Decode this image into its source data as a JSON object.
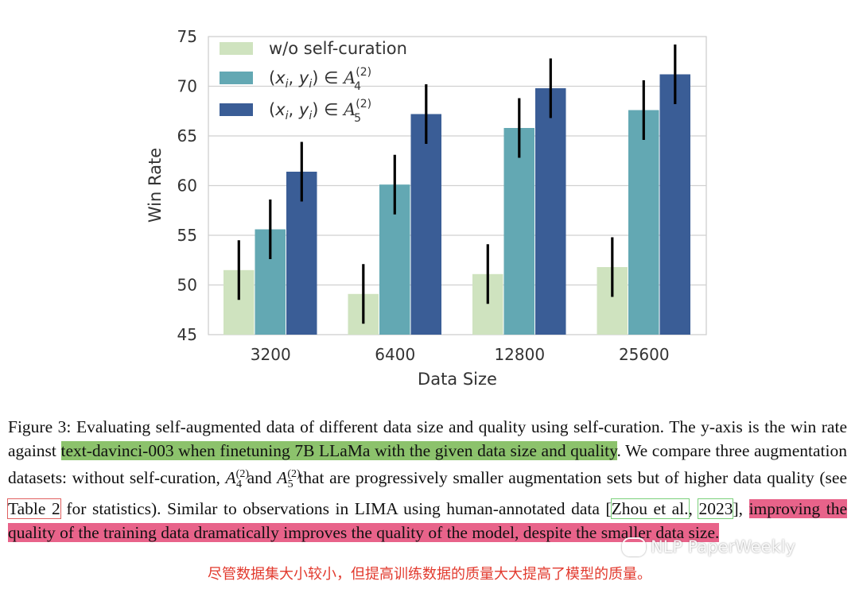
{
  "chart_data": {
    "type": "bar",
    "categories": [
      "3200",
      "6400",
      "12800",
      "25600"
    ],
    "series": [
      {
        "name": "w/o self-curation",
        "values": [
          51.5,
          49.1,
          51.1,
          51.8
        ],
        "errors": [
          3.0,
          3.0,
          3.0,
          3.0
        ],
        "color": "#cfe3bf"
      },
      {
        "name": "(x_i, y_i) ∈ A_4^(2)",
        "values": [
          55.6,
          60.1,
          65.8,
          67.6
        ],
        "errors": [
          3.0,
          3.0,
          3.0,
          3.0
        ],
        "color": "#63a8b3"
      },
      {
        "name": "(x_i, y_i) ∈ A_5^(2)",
        "values": [
          61.4,
          67.2,
          69.8,
          71.2
        ],
        "errors": [
          3.0,
          3.0,
          3.0,
          3.0
        ],
        "color": "#3a5d96"
      }
    ],
    "xlabel": "Data Size",
    "ylabel": "Win Rate",
    "ylim": [
      45,
      75
    ],
    "yticks": [
      45,
      50,
      55,
      60,
      65,
      70,
      75
    ],
    "grid": "horizontal",
    "legend_position": "top-left"
  },
  "legend_text": {
    "s0": "w/o self-curation",
    "pre": "(",
    "x": "x",
    "i": "i",
    "comma": ", ",
    "y": "y",
    "close_in": ") ∈ ",
    "A": "A",
    "sup": "(2)",
    "sub4": "4",
    "sub5": "5"
  },
  "caption": {
    "p1": "Figure 3: Evaluating self-augmented data of different data size and quality using self-curation. The y-axis is the win rate against ",
    "hl1": "text-davinci-003 when finetuning 7B LLaMa with the given data size and quality",
    "p2": ". We compare three augmentation datasets: without self-curation, ",
    "A": "A",
    "sup": "(2)",
    "sub4": "4",
    "sub5": "5",
    "and": " and ",
    "p3": " that are progressively smaller augmentation sets but of higher data quality (see ",
    "table_ref": "Table 2",
    "p4": " for statistics). Similar to observations in LIMA using human-annotated data [",
    "cite_author": "Zhou et al.",
    "cite_sep": ", ",
    "cite_year": "2023",
    "p5": "], ",
    "hl2": "improving the quality of the training data dramatically improves the quality of the model, despite the smaller data size."
  },
  "watermark": "NLP PaperWeekly",
  "chinese_note": "尽管数据集大小较小，但提高训练数据的质量大大提高了模型的质量。"
}
